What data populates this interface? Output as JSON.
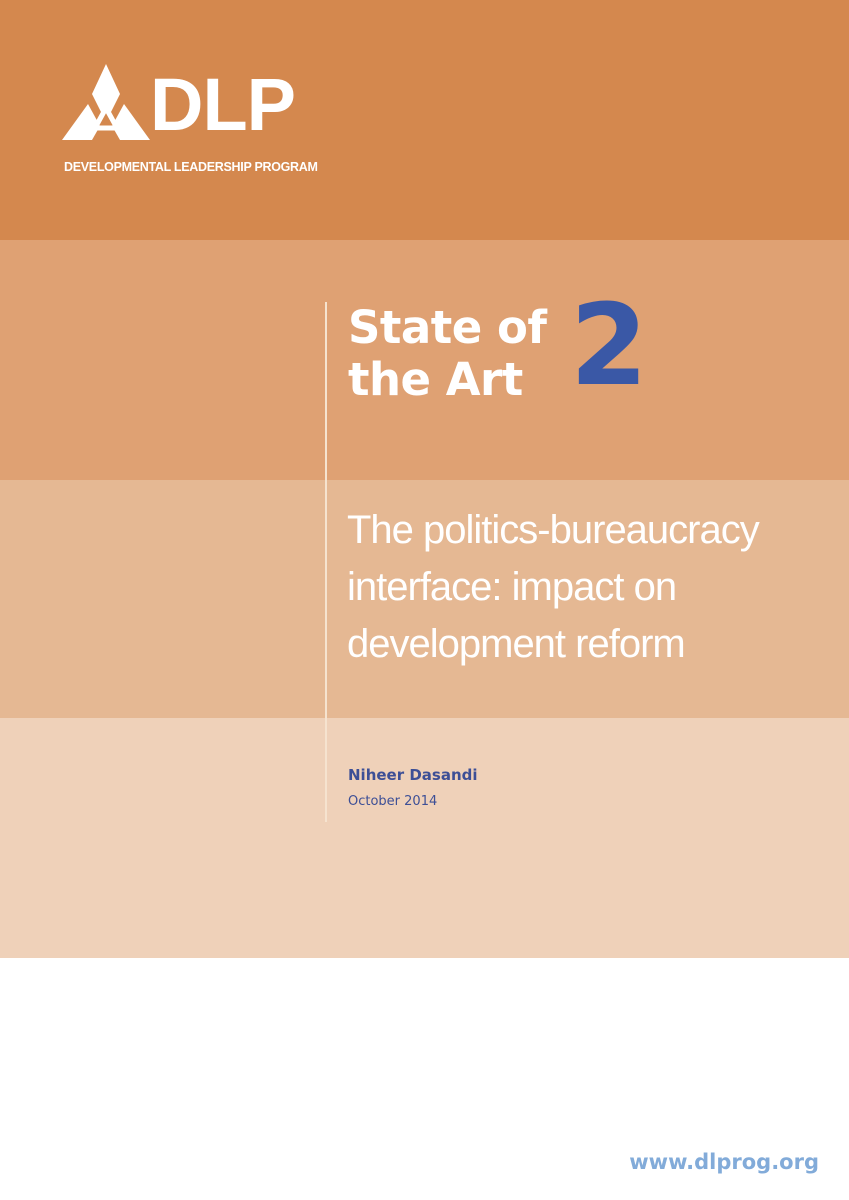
{
  "logo": {
    "name": "DLP",
    "tagline": "DEVELOPMENTAL LEADERSHIP PROGRAM"
  },
  "series": {
    "line1": "State of",
    "line2": "the Art",
    "number": "2"
  },
  "title": {
    "line1": "The politics-bureaucracy",
    "line2": "interface: impact on",
    "line3": "development reform"
  },
  "author": "Niheer Dasandi",
  "date": "October 2014",
  "url": "www.dlprog.org",
  "colors": {
    "band1": "#d4884e",
    "band2": "#dfa173",
    "band3": "#e5b893",
    "band4": "#efd1b9",
    "accent_blue": "#3a58a6",
    "url": "#82abd9"
  }
}
